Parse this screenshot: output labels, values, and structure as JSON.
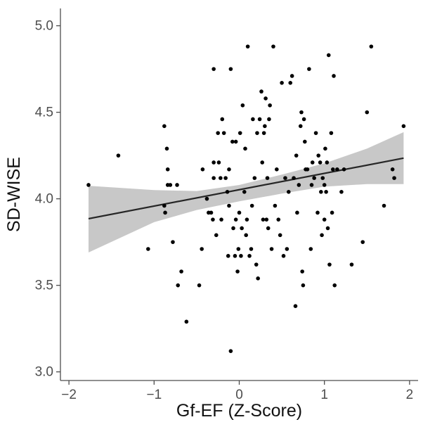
{
  "chart_data": {
    "type": "scatter",
    "title": "",
    "xlabel": "Gf-EF (Z-Score)",
    "ylabel": "SD-WISE",
    "xlim": [
      -2.1,
      2.1
    ],
    "ylim": [
      2.95,
      5.1
    ],
    "x_ticks": [
      -2,
      -1,
      0,
      1,
      2
    ],
    "x_tick_labels": [
      "−2",
      "−1",
      "0",
      "1",
      "2"
    ],
    "y_ticks": [
      3.0,
      3.5,
      4.0,
      4.5,
      5.0
    ],
    "y_tick_labels": [
      "3.0",
      "3.5",
      "4.0",
      "4.5",
      "5.0"
    ],
    "grid": false,
    "points": [
      {
        "x": -1.77,
        "y": 4.08
      },
      {
        "x": -1.42,
        "y": 4.25
      },
      {
        "x": -1.07,
        "y": 3.71
      },
      {
        "x": -0.88,
        "y": 4.42
      },
      {
        "x": -0.88,
        "y": 3.96
      },
      {
        "x": -0.87,
        "y": 3.92
      },
      {
        "x": -0.85,
        "y": 4.29
      },
      {
        "x": -0.84,
        "y": 4.17
      },
      {
        "x": -0.84,
        "y": 4.08
      },
      {
        "x": -0.81,
        "y": 4.08
      },
      {
        "x": -0.78,
        "y": 3.75
      },
      {
        "x": -0.73,
        "y": 4.08
      },
      {
        "x": -0.72,
        "y": 3.5
      },
      {
        "x": -0.68,
        "y": 3.58
      },
      {
        "x": -0.62,
        "y": 3.29
      },
      {
        "x": -0.47,
        "y": 3.5
      },
      {
        "x": -0.44,
        "y": 3.71
      },
      {
        "x": -0.43,
        "y": 4.17
      },
      {
        "x": -0.38,
        "y": 4.0
      },
      {
        "x": -0.36,
        "y": 3.92
      },
      {
        "x": -0.33,
        "y": 3.92
      },
      {
        "x": -0.31,
        "y": 3.88
      },
      {
        "x": -0.3,
        "y": 4.12
      },
      {
        "x": -0.3,
        "y": 4.21
      },
      {
        "x": -0.3,
        "y": 4.75
      },
      {
        "x": -0.27,
        "y": 3.79
      },
      {
        "x": -0.25,
        "y": 4.38
      },
      {
        "x": -0.24,
        "y": 4.21
      },
      {
        "x": -0.22,
        "y": 4.12
      },
      {
        "x": -0.21,
        "y": 3.88
      },
      {
        "x": -0.2,
        "y": 4.46
      },
      {
        "x": -0.18,
        "y": 4.38
      },
      {
        "x": -0.16,
        "y": 4.12
      },
      {
        "x": -0.14,
        "y": 4.04
      },
      {
        "x": -0.13,
        "y": 3.67
      },
      {
        "x": -0.12,
        "y": 4.17
      },
      {
        "x": -0.12,
        "y": 3.96
      },
      {
        "x": -0.1,
        "y": 4.75
      },
      {
        "x": -0.1,
        "y": 3.12
      },
      {
        "x": -0.08,
        "y": 4.33
      },
      {
        "x": -0.07,
        "y": 3.83
      },
      {
        "x": -0.05,
        "y": 3.67
      },
      {
        "x": -0.04,
        "y": 4.33
      },
      {
        "x": -0.04,
        "y": 3.88
      },
      {
        "x": -0.02,
        "y": 3.58
      },
      {
        "x": -0.01,
        "y": 3.71
      },
      {
        "x": 0.0,
        "y": 3.92
      },
      {
        "x": 0.01,
        "y": 4.38
      },
      {
        "x": 0.02,
        "y": 3.67
      },
      {
        "x": 0.03,
        "y": 3.83
      },
      {
        "x": 0.04,
        "y": 4.54
      },
      {
        "x": 0.06,
        "y": 4.04
      },
      {
        "x": 0.07,
        "y": 4.29
      },
      {
        "x": 0.08,
        "y": 3.79
      },
      {
        "x": 0.09,
        "y": 3.88
      },
      {
        "x": 0.1,
        "y": 4.88
      },
      {
        "x": 0.12,
        "y": 3.67
      },
      {
        "x": 0.14,
        "y": 3.71
      },
      {
        "x": 0.15,
        "y": 3.96
      },
      {
        "x": 0.16,
        "y": 4.46
      },
      {
        "x": 0.18,
        "y": 4.12
      },
      {
        "x": 0.2,
        "y": 3.62
      },
      {
        "x": 0.21,
        "y": 4.38
      },
      {
        "x": 0.22,
        "y": 3.54
      },
      {
        "x": 0.24,
        "y": 4.46
      },
      {
        "x": 0.26,
        "y": 4.62
      },
      {
        "x": 0.27,
        "y": 4.21
      },
      {
        "x": 0.28,
        "y": 3.88
      },
      {
        "x": 0.29,
        "y": 4.38
      },
      {
        "x": 0.3,
        "y": 4.42
      },
      {
        "x": 0.31,
        "y": 4.58
      },
      {
        "x": 0.32,
        "y": 3.88
      },
      {
        "x": 0.33,
        "y": 4.12
      },
      {
        "x": 0.34,
        "y": 3.83
      },
      {
        "x": 0.35,
        "y": 4.46
      },
      {
        "x": 0.36,
        "y": 4.54
      },
      {
        "x": 0.38,
        "y": 3.71
      },
      {
        "x": 0.4,
        "y": 4.88
      },
      {
        "x": 0.42,
        "y": 3.96
      },
      {
        "x": 0.44,
        "y": 4.17
      },
      {
        "x": 0.46,
        "y": 3.88
      },
      {
        "x": 0.48,
        "y": 3.79
      },
      {
        "x": 0.5,
        "y": 4.67
      },
      {
        "x": 0.52,
        "y": 3.67
      },
      {
        "x": 0.54,
        "y": 4.12
      },
      {
        "x": 0.56,
        "y": 3.71
      },
      {
        "x": 0.58,
        "y": 4.04
      },
      {
        "x": 0.6,
        "y": 4.67
      },
      {
        "x": 0.62,
        "y": 4.71
      },
      {
        "x": 0.64,
        "y": 4.12
      },
      {
        "x": 0.66,
        "y": 3.38
      },
      {
        "x": 0.67,
        "y": 4.25
      },
      {
        "x": 0.68,
        "y": 3.92
      },
      {
        "x": 0.7,
        "y": 4.08
      },
      {
        "x": 0.72,
        "y": 4.42
      },
      {
        "x": 0.73,
        "y": 4.5
      },
      {
        "x": 0.74,
        "y": 3.58
      },
      {
        "x": 0.75,
        "y": 3.5
      },
      {
        "x": 0.76,
        "y": 4.46
      },
      {
        "x": 0.77,
        "y": 4.33
      },
      {
        "x": 0.78,
        "y": 4.17
      },
      {
        "x": 0.8,
        "y": 4.17
      },
      {
        "x": 0.82,
        "y": 4.75
      },
      {
        "x": 0.84,
        "y": 3.71
      },
      {
        "x": 0.85,
        "y": 4.08
      },
      {
        "x": 0.86,
        "y": 4.21
      },
      {
        "x": 0.88,
        "y": 4.12
      },
      {
        "x": 0.9,
        "y": 4.38
      },
      {
        "x": 0.92,
        "y": 3.92
      },
      {
        "x": 0.93,
        "y": 4.25
      },
      {
        "x": 0.95,
        "y": 4.21
      },
      {
        "x": 0.96,
        "y": 4.04
      },
      {
        "x": 0.97,
        "y": 3.79
      },
      {
        "x": 0.98,
        "y": 4.12
      },
      {
        "x": 1.0,
        "y": 3.88
      },
      {
        "x": 1.0,
        "y": 4.08
      },
      {
        "x": 1.01,
        "y": 4.29
      },
      {
        "x": 1.02,
        "y": 4.04
      },
      {
        "x": 1.03,
        "y": 4.21
      },
      {
        "x": 1.04,
        "y": 3.83
      },
      {
        "x": 1.05,
        "y": 4.83
      },
      {
        "x": 1.06,
        "y": 3.62
      },
      {
        "x": 1.08,
        "y": 4.38
      },
      {
        "x": 1.09,
        "y": 3.92
      },
      {
        "x": 1.1,
        "y": 4.17
      },
      {
        "x": 1.11,
        "y": 4.71
      },
      {
        "x": 1.12,
        "y": 3.5
      },
      {
        "x": 1.15,
        "y": 4.17
      },
      {
        "x": 1.2,
        "y": 4.04
      },
      {
        "x": 1.23,
        "y": 4.17
      },
      {
        "x": 1.32,
        "y": 3.62
      },
      {
        "x": 1.45,
        "y": 3.75
      },
      {
        "x": 1.5,
        "y": 4.5
      },
      {
        "x": 1.55,
        "y": 4.88
      },
      {
        "x": 1.7,
        "y": 3.96
      },
      {
        "x": 1.8,
        "y": 4.17
      },
      {
        "x": 1.82,
        "y": 4.12
      },
      {
        "x": 1.93,
        "y": 4.42
      }
    ],
    "fit_line": {
      "x": [
        -1.77,
        1.93
      ],
      "y": [
        3.885,
        4.235
      ]
    },
    "confidence_band": {
      "x": [
        -1.77,
        -1.0,
        -0.5,
        0.0,
        0.5,
        1.0,
        1.5,
        1.93
      ],
      "lower": [
        3.69,
        3.865,
        3.935,
        3.985,
        4.03,
        4.07,
        4.085,
        4.085
      ],
      "upper": [
        4.075,
        4.05,
        4.045,
        4.08,
        4.14,
        4.205,
        4.29,
        4.385
      ]
    },
    "colors": {
      "points": "#000000",
      "line": "#262626",
      "band": "#c8c8c8",
      "axis": "#4d4d4d"
    }
  }
}
